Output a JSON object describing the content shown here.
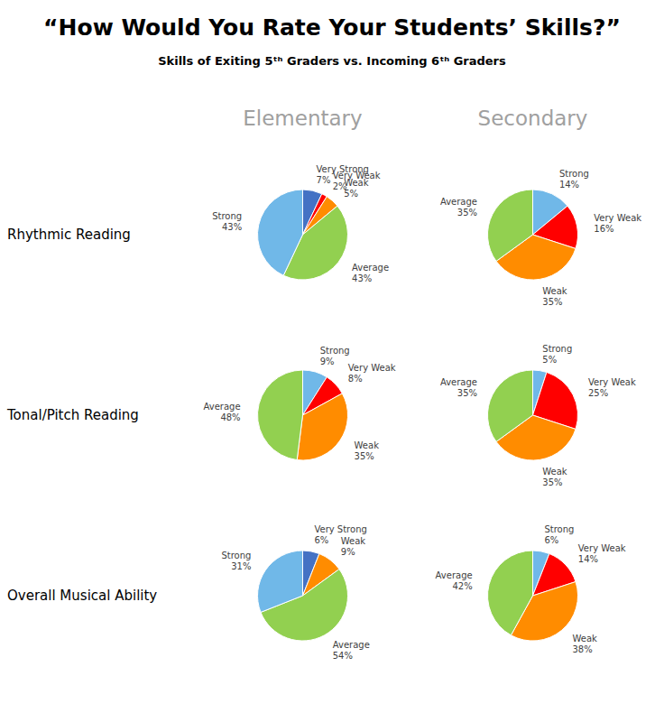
{
  "chart_data": {
    "type": "pie",
    "title": "“How Would You Rate Your Students’ Skills?”",
    "subtitle": "Skills of Exiting 5ᵗʰ Graders vs. Incoming 6ᵗʰ Graders",
    "columns": [
      "Elementary",
      "Secondary"
    ],
    "rows": [
      "Rhythmic Reading",
      "Tonal/Pitch Reading",
      "Overall Musical Ability"
    ],
    "data_labels": true,
    "pies": [
      {
        "categories": [
          "Very Strong",
          "Very Weak",
          "Weak",
          "Average",
          "Strong"
        ],
        "values": [
          7,
          2,
          5,
          43,
          43
        ],
        "value_labels": [
          "7%",
          "2%",
          "5%",
          "43%",
          "43%"
        ],
        "colors": [
          "#4472C4",
          "#FF0000",
          "#FF8C00",
          "#92D050",
          "#70B8E8"
        ]
      },
      {
        "categories": [
          "Strong",
          "Very Weak",
          "Weak",
          "Average"
        ],
        "values": [
          14,
          16,
          35,
          35
        ],
        "value_labels": [
          "14%",
          "16%",
          "35%",
          "35%"
        ],
        "colors": [
          "#70B8E8",
          "#FF0000",
          "#FF8C00",
          "#92D050"
        ]
      },
      {
        "categories": [
          "Strong",
          "Very Weak",
          "Weak",
          "Average"
        ],
        "values": [
          9,
          8,
          35,
          48
        ],
        "value_labels": [
          "9%",
          "8%",
          "35%",
          "48%"
        ],
        "colors": [
          "#70B8E8",
          "#FF0000",
          "#FF8C00",
          "#92D050"
        ]
      },
      {
        "categories": [
          "Strong",
          "Very Weak",
          "Weak",
          "Average"
        ],
        "values": [
          5,
          25,
          35,
          35
        ],
        "value_labels": [
          "5%",
          "25%",
          "35%",
          "35%"
        ],
        "colors": [
          "#70B8E8",
          "#FF0000",
          "#FF8C00",
          "#92D050"
        ]
      },
      {
        "categories": [
          "Very Strong",
          "Weak",
          "Average",
          "Strong"
        ],
        "values": [
          6,
          9,
          54,
          31
        ],
        "value_labels": [
          "6%",
          "9%",
          "54%",
          "31%"
        ],
        "colors": [
          "#4472C4",
          "#FF8C00",
          "#92D050",
          "#70B8E8"
        ]
      },
      {
        "categories": [
          "Strong",
          "Very Weak",
          "Weak",
          "Average"
        ],
        "values": [
          6,
          14,
          38,
          42
        ],
        "value_labels": [
          "6%",
          "14%",
          "38%",
          "42%"
        ],
        "colors": [
          "#70B8E8",
          "#FF0000",
          "#FF8C00",
          "#92D050"
        ]
      }
    ]
  }
}
